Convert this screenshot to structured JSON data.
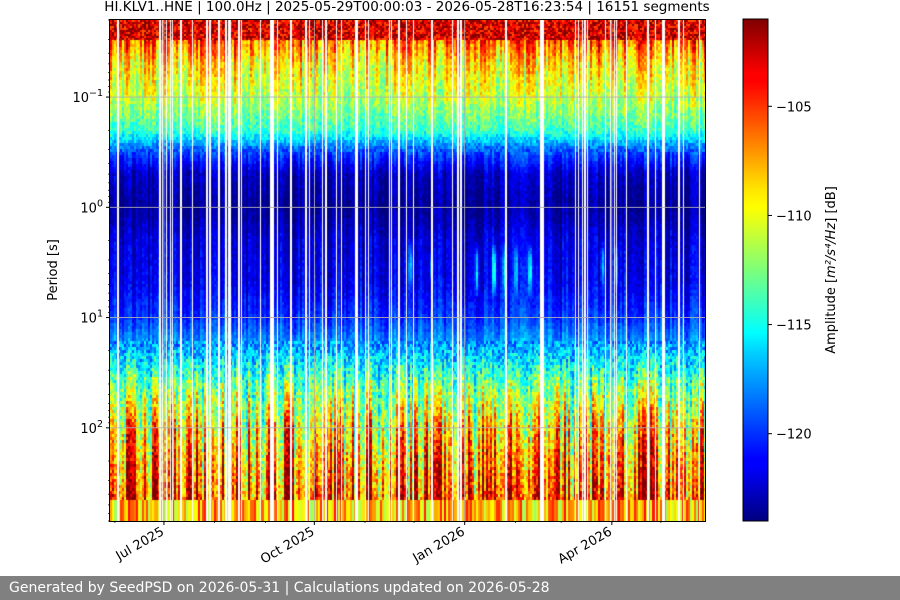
{
  "chart_data": {
    "type": "heatmap",
    "title": "HI.KLV1..HNE | 100.0Hz | 2025-05-29T00:00:03 - 2026-05-28T16:23:54 | 16151 segments",
    "ylabel": "Period [s]",
    "yscale": "log",
    "ylim": [
      0.02,
      700
    ],
    "yticks": [
      {
        "value": 0.1,
        "base": "10",
        "exp": "−1"
      },
      {
        "value": 1,
        "base": "10",
        "exp": "0"
      },
      {
        "value": 10,
        "base": "10",
        "exp": "1"
      },
      {
        "value": 100,
        "base": "10",
        "exp": "2"
      }
    ],
    "xlim": [
      "2025-05-29",
      "2026-05-28"
    ],
    "xticks": [
      {
        "value": "2025-07-01",
        "label": "Jul 2025"
      },
      {
        "value": "2025-10-01",
        "label": "Oct 2025"
      },
      {
        "value": "2026-01-01",
        "label": "Jan 2026"
      },
      {
        "value": "2026-04-01",
        "label": "Apr 2026"
      }
    ],
    "grid": true,
    "colorbar": {
      "colormap": "jet",
      "label": "Amplitude [m²/s⁴/Hz] [dB]",
      "label_prefix": "Amplitude [",
      "label_units": "m²/s⁴/Hz",
      "label_suffix": "] [dB]",
      "range": [
        -124,
        -101
      ],
      "ticks": [
        -105,
        -110,
        -115,
        -120
      ],
      "tick_labels": [
        "−105",
        "−110",
        "−115",
        "−120"
      ]
    },
    "period_profile": [
      {
        "period": 0.02,
        "db": -103
      },
      {
        "period": 0.03,
        "db": -106
      },
      {
        "period": 0.05,
        "db": -109
      },
      {
        "period": 0.1,
        "db": -111
      },
      {
        "period": 0.2,
        "db": -114
      },
      {
        "period": 0.3,
        "db": -119
      },
      {
        "period": 0.5,
        "db": -122.5
      },
      {
        "period": 1,
        "db": -123.5
      },
      {
        "period": 2,
        "db": -122
      },
      {
        "period": 5,
        "db": -121.5
      },
      {
        "period": 10,
        "db": -120
      },
      {
        "period": 20,
        "db": -117
      },
      {
        "period": 40,
        "db": -113
      },
      {
        "period": 100,
        "db": -109
      },
      {
        "period": 200,
        "db": -107
      },
      {
        "period": 500,
        "db": -105
      },
      {
        "period": 700,
        "db": -104
      }
    ],
    "microseism_episodes": [
      {
        "start": "2025-11-27",
        "end": "2025-12-01",
        "period_range": [
          2,
          6
        ],
        "db": -116
      },
      {
        "start": "2025-12-10",
        "end": "2025-12-13",
        "period_range": [
          2.5,
          5
        ],
        "db": -118
      },
      {
        "start": "2026-01-07",
        "end": "2026-01-10",
        "period_range": [
          2,
          7
        ],
        "db": -114
      },
      {
        "start": "2026-01-17",
        "end": "2026-01-21",
        "period_range": [
          2,
          7
        ],
        "db": -113
      },
      {
        "start": "2026-01-24",
        "end": "2026-01-27",
        "period_range": [
          2,
          7
        ],
        "db": -114
      },
      {
        "start": "2026-01-31",
        "end": "2026-02-03",
        "period_range": [
          2,
          7
        ],
        "db": -115
      },
      {
        "start": "2026-02-08",
        "end": "2026-02-12",
        "period_range": [
          2,
          7
        ],
        "db": -114
      },
      {
        "start": "2026-03-25",
        "end": "2026-03-28",
        "period_range": [
          2,
          6
        ],
        "db": -116
      },
      {
        "start": "2026-04-02",
        "end": "2026-04-05",
        "period_range": [
          2,
          6
        ],
        "db": -116
      }
    ]
  },
  "footer": {
    "text": "Generated by SeedPSD on 2026-05-31 | Calculations updated on 2026-05-28"
  }
}
